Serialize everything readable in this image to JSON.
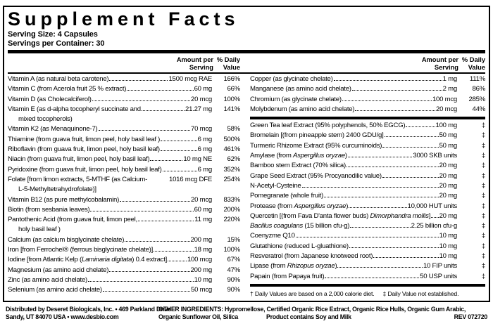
{
  "label": {
    "title": "Supplement Facts",
    "serving_size": "Serving Size: 4 Capsules",
    "servings_per_container": "Servings per Container: 30"
  },
  "headers": {
    "amount": "Amount per Serving",
    "dv": "% Daily Value"
  },
  "left_rows": [
    {
      "name": "Vitamin A (as natural beta carotene)",
      "amount": "1500 mcg RAE",
      "dv": "166%"
    },
    {
      "name": "Vitamin C (from Acerola fruit 25 % extract)",
      "amount": "60 mg",
      "dv": "66%"
    },
    {
      "name": "Vitamin D (as Cholecalciferol)",
      "amount": "20 mcg",
      "dv": "100%"
    },
    {
      "name": "Vitamin E (as d-alpha tocopheryl succinate and",
      "amount": "21.27 mg",
      "dv": "141%",
      "cont": "mixed tocopherols)"
    },
    {
      "name": "Vitamin K2 (as Menaquinone-7)",
      "amount": "70 mcg",
      "dv": "58%"
    },
    {
      "name": "Thiamine (from guava fruit, limon peel, holy basil leaf )",
      "amount": "6 mg",
      "dv": "500%"
    },
    {
      "name": "Riboflavin (from guava fruit, limon peel, holy basil leaf)",
      "amount": "6 mg",
      "dv": "461%"
    },
    {
      "name": "Niacin (from guava fruit, limon peel, holy basil leaf)",
      "amount": "10 mg NE",
      "dv": "62%"
    },
    {
      "name": "Pyridoxine (from guava fruit, limon peel, holy basil leaf)",
      "amount": "6 mg",
      "dv": "352%"
    },
    {
      "name": "Folate [from limon extracts, 5-MTHF (as Calcium-",
      "amount": "1016 mcg DFE",
      "dv": "254%",
      "leader": false,
      "cont": "L-5-Methyltetrahydrofolate)]"
    },
    {
      "name": "Vitamin B12 (as pure methylcobalamin)",
      "amount": "20 mcg",
      "dv": "833%"
    },
    {
      "name": "Biotin (from sesbania leaves)",
      "amount": "60 mg",
      "dv": "200%"
    },
    {
      "name": "Pantothenic Acid (from guava fruit, limon peel,",
      "amount": "11 mg",
      "dv": "220%",
      "cont": "holy basil leaf )"
    },
    {
      "name": "Calcium (as calcium bisglycinate chelate)",
      "amount": "200 mg",
      "dv": "15%"
    },
    {
      "name": "Iron [from Ferrochel® (ferrous bisglycinate chelate)]",
      "amount": "18 mg",
      "dv": "100%"
    },
    {
      "name": "Iodine [from Atlantic Kelp (_Laminaria digitata_) 0.4 extract]",
      "amount": "100 mcg",
      "dv": "67%"
    },
    {
      "name": "Magnesium (as amino acid chelate)",
      "amount": "200 mg",
      "dv": "47%"
    },
    {
      "name": "Zinc (as amino acid chelate)",
      "amount": "10 mg",
      "dv": "90%"
    },
    {
      "name": "Selenium (as amino acid chelate)",
      "amount": "50 mcg",
      "dv": "90%"
    }
  ],
  "right_minerals": [
    {
      "name": "Copper (as glycinate chelate)",
      "amount": "1 mg",
      "dv": "111%"
    },
    {
      "name": "Manganese (as amino acid chelate)",
      "amount": "2 mg",
      "dv": "86%"
    },
    {
      "name": "Chromium (as glycinate chelate)",
      "amount": "100 mcg",
      "dv": "285%"
    },
    {
      "name": "Molybdenum (as amino acid chelate)",
      "amount": "20 mcg",
      "dv": "44%"
    }
  ],
  "right_other": [
    {
      "name": "Green Tea leaf Extract (95% polyphenols, 50% EGCG)",
      "amount": "100 mg",
      "dv": "‡"
    },
    {
      "name": "Bromelain [(from pineapple stem) 2400 GDU/g]",
      "amount": "50 mg",
      "dv": "‡"
    },
    {
      "name": "Turmeric Rhizome Extract (95% curcuminoids)",
      "amount": "50 mg",
      "dv": "‡"
    },
    {
      "name": "Amylase (from _Aspergillus oryzae_)",
      "amount": "3000 SKB units",
      "dv": "‡"
    },
    {
      "name": "Bamboo stem Extract (70% silica)",
      "amount": "20 mg",
      "dv": "‡"
    },
    {
      "name": "Grape Seed Extract (95% Procyanodilic value)",
      "amount": "20 mg",
      "dv": "‡"
    },
    {
      "name": "N-Acetyl-Cysteine",
      "amount": "20 mg",
      "dv": "‡"
    },
    {
      "name": "Pomegranate (whole fruit)",
      "amount": "20 mg",
      "dv": "‡"
    },
    {
      "name": "Protease (from _Aspergillus oryzae_)",
      "amount": "10,000 HUT units",
      "dv": "‡"
    },
    {
      "name": "Quercetin [(from Fava D'anta flower buds) _Dimorphandra mollis_]",
      "amount": "20 mg",
      "dv": "‡"
    },
    {
      "name": "_Bacillus coagulans_ (15 billion cfu-g)",
      "amount": "2.25 billion cfu-g",
      "dv": "‡"
    },
    {
      "name": "Coenyzme Q10",
      "amount": "10 mg",
      "dv": "‡"
    },
    {
      "name": "Glutathione (reduced L-gluathione)",
      "amount": "10 mg",
      "dv": "‡"
    },
    {
      "name": "Resveratrol (from Japanese knotweed root)",
      "amount": "10 mg",
      "dv": "‡"
    },
    {
      "name": "Lipase (from _Rhizopus oryzae_)",
      "amount": "10 FIP units",
      "dv": "‡"
    },
    {
      "name": "Papain (from Papaya fruit)",
      "amount": "50 USP units",
      "dv": "‡"
    }
  ],
  "footnote": {
    "dagger": "† Daily Values are based on a 2,000 calorie diet.",
    "ddagger": "‡ Daily Value not established."
  },
  "footer": {
    "distributor_line1": "Distributed by Deseret Biologicals, Inc. • 469 Parkland Drive",
    "distributor_line2": "Sandy, UT 84070 USA • www.desbio.com",
    "other_ingredients_line1": "OTHER INGREDIENTS:  Hypromellose, Certified Organic Rice Extract, Organic Rice Hulls, Organic Gum Arabic,",
    "other_ingredients_line2": "Organic Sunflower Oil, Silica",
    "allergen": "Product contains Soy and Milk",
    "rev": "REV 072720"
  }
}
